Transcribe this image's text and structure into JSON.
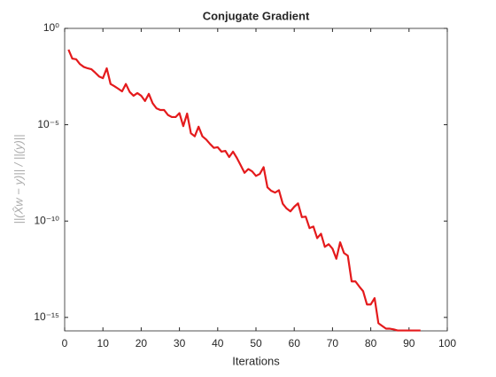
{
  "chart_data": {
    "type": "line",
    "title": "Conjugate Gradient",
    "xlabel": "Iterations",
    "ylabel": "||(X̂w − y)|| / ||(y)||",
    "yscale": "log",
    "grid": false,
    "color": "#e41a1c",
    "x": [
      1,
      2,
      3,
      4,
      5,
      6,
      7,
      8,
      9,
      10,
      11,
      12,
      13,
      14,
      15,
      16,
      17,
      18,
      19,
      20,
      21,
      22,
      23,
      24,
      25,
      26,
      27,
      28,
      29,
      30,
      31,
      32,
      33,
      34,
      35,
      36,
      37,
      38,
      39,
      40,
      41,
      42,
      43,
      44,
      45,
      46,
      47,
      48,
      49,
      50,
      51,
      52,
      53,
      54,
      55,
      56,
      57,
      58,
      59,
      60,
      61,
      62,
      63,
      64,
      65,
      66,
      67,
      68,
      69,
      70,
      71,
      72,
      73,
      74,
      75,
      76,
      77,
      78,
      79,
      80,
      81,
      82,
      83,
      84,
      85,
      86,
      87,
      88,
      89,
      90,
      91,
      92,
      93
    ],
    "values": [
      0.079,
      0.027,
      0.025,
      0.014,
      0.01,
      0.0085,
      0.0076,
      0.005,
      0.0032,
      0.0026,
      0.0085,
      0.0013,
      0.001,
      0.00074,
      0.00054,
      0.0013,
      0.0005,
      0.00032,
      0.00044,
      0.00032,
      0.00017,
      0.0004,
      0.00013,
      7.1e-05,
      5.8e-05,
      5.8e-05,
      3.2e-05,
      2.5e-05,
      2.5e-05,
      4e-05,
      8.5e-06,
      3.8e-05,
      3.6e-06,
      2.5e-06,
      7.9e-06,
      2.5e-06,
      1.7e-06,
      1e-06,
      6.3e-07,
      6.8e-07,
      4e-07,
      4.4e-07,
      2.1e-07,
      4e-07,
      1.9e-07,
      7.9e-08,
      3.2e-08,
      5e-08,
      3.8e-08,
      2.2e-08,
      2.8e-08,
      6.3e-08,
      5.6e-09,
      3.7e-09,
      3e-09,
      4e-09,
      7.9e-10,
      4.5e-10,
      3.2e-10,
      5.5e-10,
      8.3e-10,
      1.6e-10,
      1.7e-10,
      4.3e-11,
      5.2e-11,
      1.3e-11,
      2.2e-11,
      4.6e-12,
      6.3e-12,
      3.7e-12,
      1.1e-12,
      7.9e-12,
      2.2e-12,
      1.6e-12,
      7.4e-14,
      7.4e-14,
      4e-14,
      2.3e-14,
      4.7e-15,
      4.7e-15,
      1e-14,
      5e-16,
      3.6e-16,
      2.6e-16,
      2.6e-16,
      2.4e-16,
      2.1e-16,
      2.1e-16,
      2.1e-16,
      2.1e-16,
      2.1e-16,
      2.1e-16,
      2.1e-16
    ],
    "xlim": [
      0,
      100
    ],
    "xticks": [
      0,
      10,
      20,
      30,
      40,
      50,
      60,
      70,
      80,
      90,
      100
    ],
    "ylim": [
      2e-16,
      1
    ],
    "yticks": [
      {
        "value": 1,
        "label": "10⁰"
      },
      {
        "value": 1e-05,
        "label": "10⁻⁵"
      },
      {
        "value": 1e-10,
        "label": "10⁻¹⁰"
      },
      {
        "value": 1e-15,
        "label": "10⁻¹⁵"
      }
    ]
  }
}
